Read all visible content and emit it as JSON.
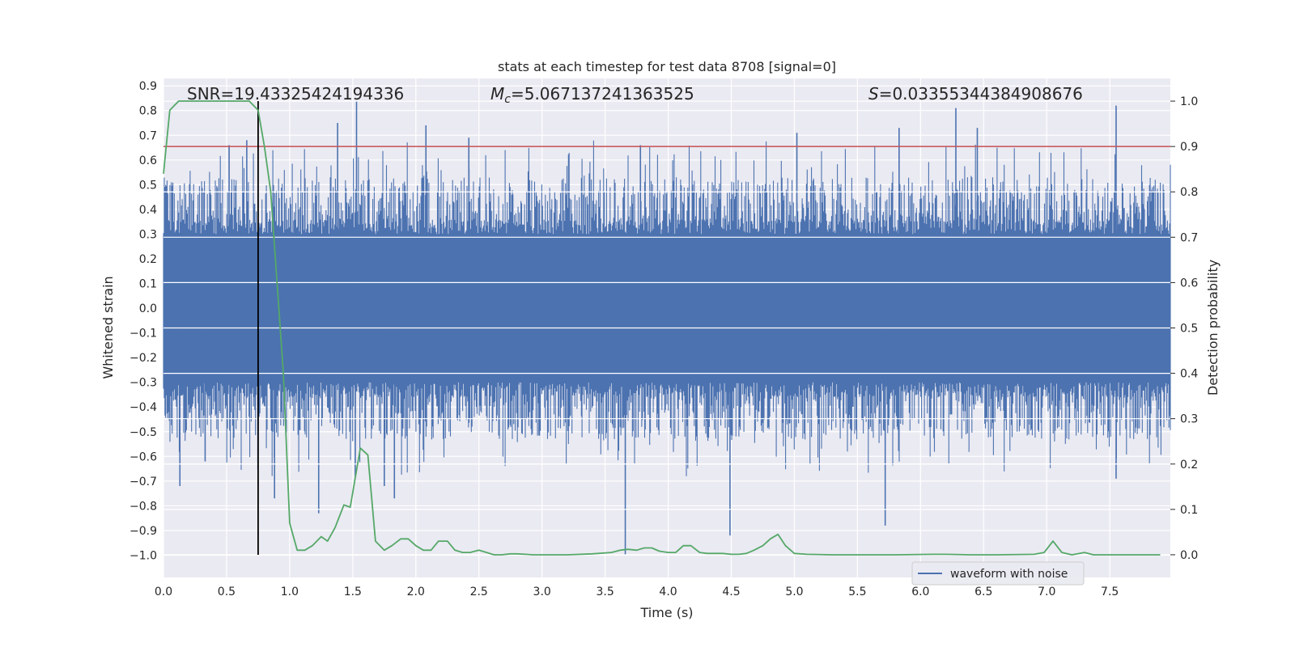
{
  "chart_data": {
    "type": "line",
    "title": "stats at each timestep for test data 8708 [signal=0]",
    "xlabel": "Time (s)",
    "ylabel": "Whitened strain",
    "y2label": "Detection probability",
    "xlim": [
      0.0,
      7.98
    ],
    "ylim": [
      -1.09,
      0.93
    ],
    "y2lim": [
      -0.05,
      1.05
    ],
    "xticks": [
      "0.0",
      "0.5",
      "1.0",
      "1.5",
      "2.0",
      "2.5",
      "3.0",
      "3.5",
      "4.0",
      "4.5",
      "5.0",
      "5.5",
      "6.0",
      "6.5",
      "7.0",
      "7.5"
    ],
    "yticks": [
      "0.9",
      "0.8",
      "0.7",
      "0.6",
      "0.5",
      "0.4",
      "0.3",
      "0.2",
      "0.1",
      "0.0",
      "−0.1",
      "−0.2",
      "−0.3",
      "−0.4",
      "−0.5",
      "−0.6",
      "−0.7",
      "−0.8",
      "−0.9",
      "−1.0"
    ],
    "y2ticks": [
      "0.0",
      "0.1",
      "0.2",
      "0.3",
      "0.4",
      "0.5",
      "0.6",
      "0.7",
      "0.8",
      "0.9",
      "1.0"
    ],
    "annotations": {
      "snr": "SNR=19.43325424194336",
      "mc_symbol": "M",
      "mc_sub": "c",
      "mc_value": "=5.067137241363525",
      "s_symbol": "S",
      "s_value": "=0.03355344384908676"
    },
    "threshold_line": {
      "y2": 0.9,
      "color": "#c44e52"
    },
    "marker_line": {
      "x": 0.75,
      "color": "#000000"
    },
    "legend": {
      "label": "waveform with noise",
      "placement": "lower-right"
    },
    "series": [
      {
        "name": "waveform with noise",
        "axis": "left",
        "color": "#4c72b0",
        "kind": "noise",
        "core_amplitude": 0.3,
        "peak_range": [
          0.35,
          0.53
        ],
        "spikes": [
          {
            "x": 0.13,
            "y": -0.72
          },
          {
            "x": 0.33,
            "y": -0.62
          },
          {
            "x": 0.52,
            "y": 0.66
          },
          {
            "x": 0.66,
            "y": 0.68
          },
          {
            "x": 0.88,
            "y": -0.77
          },
          {
            "x": 1.23,
            "y": -0.83
          },
          {
            "x": 1.38,
            "y": 0.75
          },
          {
            "x": 1.53,
            "y": 0.84
          },
          {
            "x": 1.52,
            "y": -0.68
          },
          {
            "x": 1.75,
            "y": -0.72
          },
          {
            "x": 1.83,
            "y": -0.77
          },
          {
            "x": 2.08,
            "y": 0.74
          },
          {
            "x": 2.42,
            "y": 0.69
          },
          {
            "x": 3.66,
            "y": -1.0
          },
          {
            "x": 3.78,
            "y": 0.66
          },
          {
            "x": 4.49,
            "y": -0.92
          },
          {
            "x": 5.02,
            "y": 0.71
          },
          {
            "x": 5.72,
            "y": -0.88
          },
          {
            "x": 5.83,
            "y": 0.73
          },
          {
            "x": 6.28,
            "y": 0.81
          },
          {
            "x": 6.45,
            "y": 0.73
          },
          {
            "x": 7.55,
            "y": 0.82
          },
          {
            "x": 7.55,
            "y": -0.69
          }
        ]
      },
      {
        "name": "detection probability",
        "axis": "right",
        "color": "#55a868",
        "x": [
          0.0,
          0.05,
          0.12,
          0.2,
          0.3,
          0.4,
          0.5,
          0.6,
          0.68,
          0.75,
          0.8,
          0.85,
          0.9,
          0.95,
          1.0,
          1.06,
          1.12,
          1.18,
          1.25,
          1.3,
          1.36,
          1.43,
          1.48,
          1.56,
          1.62,
          1.68,
          1.75,
          1.81,
          1.88,
          1.94,
          2.0,
          2.06,
          2.12,
          2.18,
          2.25,
          2.31,
          2.37,
          2.43,
          2.5,
          2.56,
          2.62,
          2.68,
          2.75,
          2.8,
          2.87,
          2.93,
          3.0,
          3.2,
          3.4,
          3.55,
          3.62,
          3.68,
          3.75,
          3.81,
          3.87,
          3.93,
          4.0,
          4.06,
          4.12,
          4.18,
          4.25,
          4.31,
          4.37,
          4.43,
          4.5,
          4.56,
          4.62,
          4.68,
          4.75,
          4.81,
          4.87,
          4.93,
          5.0,
          5.1,
          5.3,
          5.5,
          5.8,
          6.1,
          6.2,
          6.4,
          6.6,
          6.9,
          6.98,
          7.05,
          7.12,
          7.2,
          7.3,
          7.37,
          7.5,
          7.7,
          7.9
        ],
        "values": [
          0.84,
          0.98,
          1.0,
          1.0,
          1.0,
          1.0,
          1.0,
          1.0,
          1.0,
          0.98,
          0.9,
          0.8,
          0.6,
          0.4,
          0.07,
          0.01,
          0.01,
          0.02,
          0.04,
          0.03,
          0.06,
          0.11,
          0.105,
          0.235,
          0.22,
          0.03,
          0.01,
          0.02,
          0.035,
          0.035,
          0.02,
          0.01,
          0.01,
          0.03,
          0.03,
          0.01,
          0.005,
          0.005,
          0.01,
          0.005,
          0.0,
          0.0,
          0.002,
          0.002,
          0.001,
          0.0,
          0.0,
          0.0,
          0.002,
          0.005,
          0.01,
          0.012,
          0.01,
          0.015,
          0.015,
          0.008,
          0.005,
          0.005,
          0.02,
          0.02,
          0.005,
          0.003,
          0.003,
          0.003,
          0.001,
          0.001,
          0.003,
          0.01,
          0.02,
          0.035,
          0.045,
          0.02,
          0.003,
          0.001,
          0.0,
          0.0,
          0.0,
          0.001,
          0.001,
          0.0,
          0.0,
          0.001,
          0.005,
          0.03,
          0.005,
          0.0,
          0.005,
          0.0,
          0.0,
          0.0,
          0.0
        ]
      }
    ]
  }
}
